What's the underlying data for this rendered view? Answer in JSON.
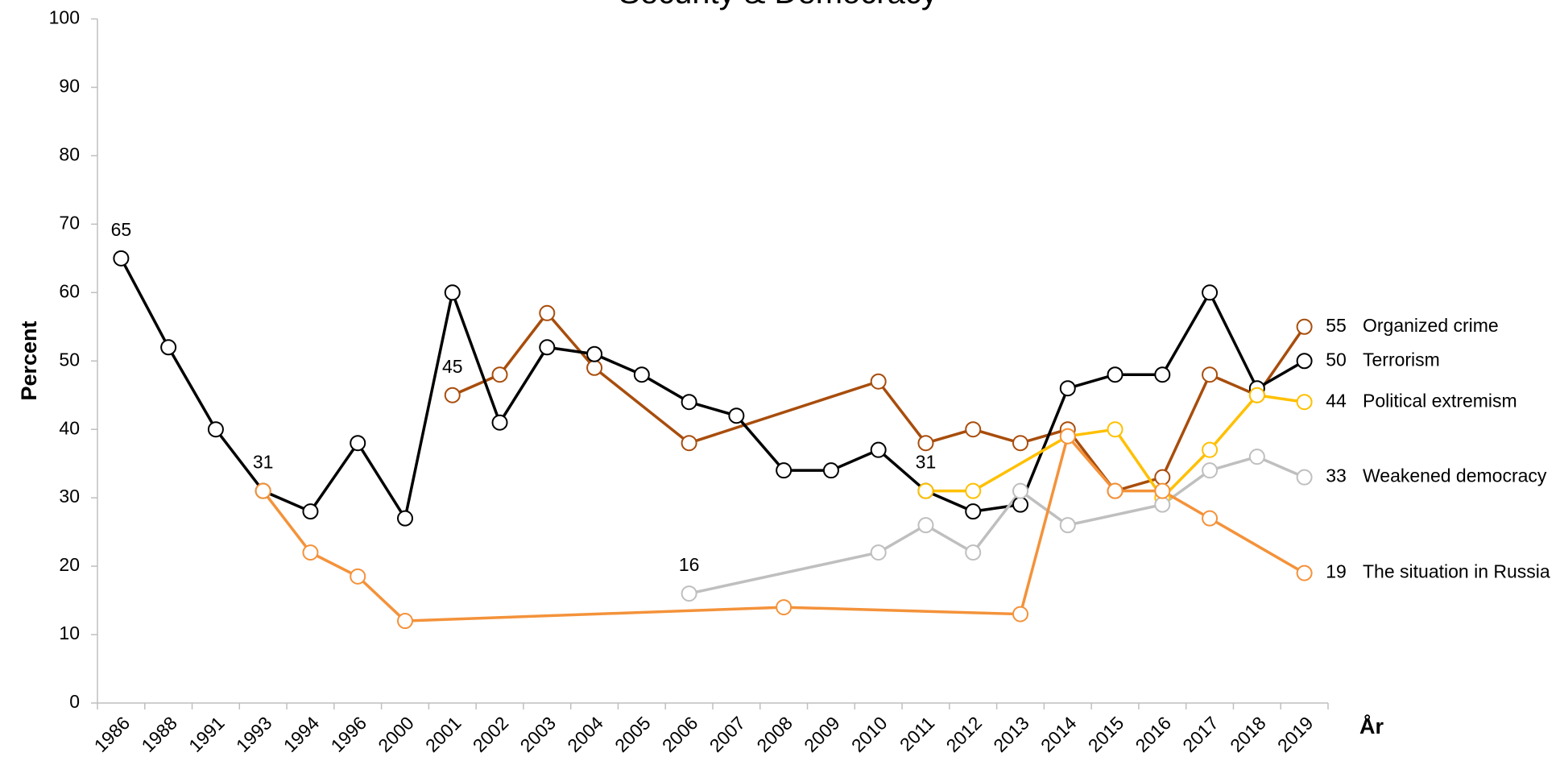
{
  "chart_data": {
    "type": "line",
    "title": "Security & Democracy",
    "x_label": "År",
    "y_label": "Percent",
    "categories": [
      "1986",
      "1988",
      "1991",
      "1993",
      "1994",
      "1996",
      "2000",
      "2001",
      "2002",
      "2003",
      "2004",
      "2005",
      "2006",
      "2007",
      "2008",
      "2009",
      "2010",
      "2011",
      "2012",
      "2013",
      "2014",
      "2015",
      "2016",
      "2017",
      "2018",
      "2019"
    ],
    "ylim": [
      0,
      100
    ],
    "yticks": [
      0,
      10,
      20,
      30,
      40,
      50,
      60,
      70,
      80,
      90,
      100
    ],
    "series": [
      {
        "name": "Organized crime",
        "color": "#a84d0c",
        "x": [
          "2001",
          "2002",
          "2003",
          "2004",
          "2006",
          "2010",
          "2011",
          "2012",
          "2013",
          "2014",
          "2015",
          "2016",
          "2017",
          "2018",
          "2019"
        ],
        "values": [
          45,
          48,
          57,
          49,
          38,
          47,
          38,
          40,
          38,
          40,
          31,
          33,
          48,
          45,
          55
        ]
      },
      {
        "name": "Terrorism",
        "color": "#000000",
        "x": [
          "1986",
          "1988",
          "1991",
          "1993",
          "1994",
          "1996",
          "2000",
          "2001",
          "2002",
          "2003",
          "2004",
          "2005",
          "2006",
          "2007",
          "2008",
          "2009",
          "2010",
          "2011",
          "2012",
          "2013",
          "2014",
          "2015",
          "2016",
          "2017",
          "2018",
          "2019"
        ],
        "values": [
          65,
          52,
          40,
          31,
          28,
          38,
          27,
          60,
          41,
          52,
          51,
          48,
          44,
          42,
          34,
          34,
          37,
          31,
          28,
          29,
          46,
          48,
          48,
          60,
          46,
          50
        ]
      },
      {
        "name": "Political extremism",
        "color": "#ffc000",
        "x": [
          "2011",
          "2012",
          "2014",
          "2015",
          "2016",
          "2017",
          "2018",
          "2019"
        ],
        "values": [
          31,
          31,
          39,
          40,
          30,
          37,
          45,
          44
        ]
      },
      {
        "name": "Weakened democracy",
        "color": "#bfbfbf",
        "x": [
          "2006",
          "2010",
          "2011",
          "2012",
          "2013",
          "2014",
          "2016",
          "2017",
          "2018",
          "2019"
        ],
        "values": [
          16,
          22,
          26,
          22,
          31,
          26,
          29,
          34,
          36,
          33
        ]
      },
      {
        "name": "The situation in Russia",
        "color": "#f4923a",
        "x": [
          "1993",
          "1994",
          "1996",
          "2000",
          "2008",
          "2013",
          "2014",
          "2015",
          "2016",
          "2017",
          "2019"
        ],
        "values": [
          31,
          22,
          18.5,
          12,
          14,
          13,
          39,
          31,
          31,
          27,
          19
        ]
      }
    ]
  }
}
